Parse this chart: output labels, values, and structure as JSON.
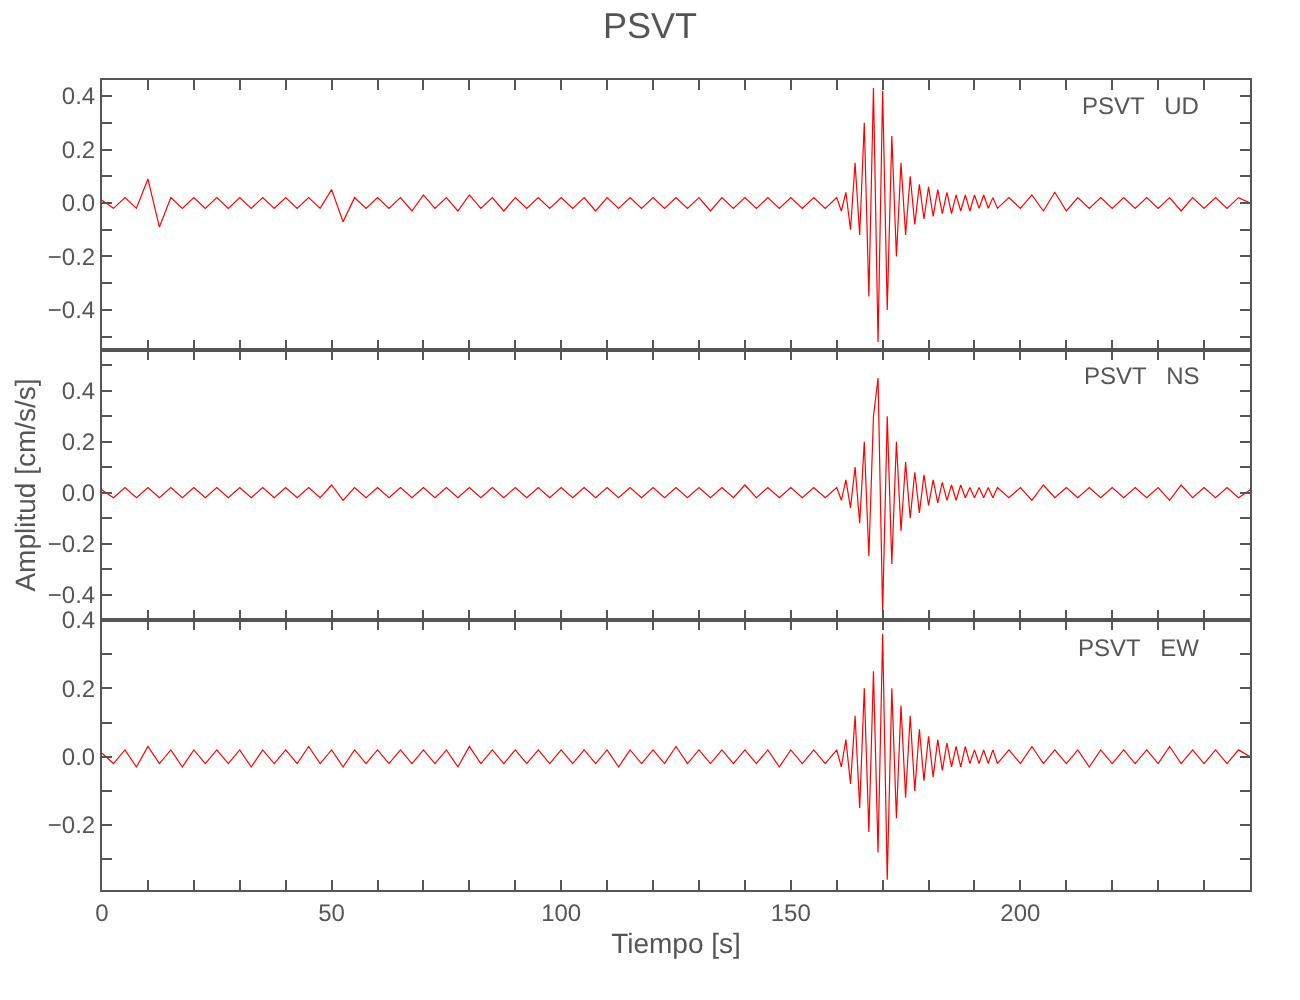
{
  "chart_data": [
    {
      "type": "line",
      "title": "PSVT",
      "annotations": [
        "PSVT   UD"
      ],
      "tick_labels": "y",
      "line_style": "solid",
      "marker": "none",
      "x": [
        0,
        2.5,
        5,
        7.5,
        10,
        12.5,
        15,
        17.5,
        20,
        22.5,
        25,
        27.5,
        30,
        32.5,
        35,
        37.5,
        40,
        42.5,
        45,
        47.5,
        50,
        52.5,
        55,
        57.5,
        60,
        62.5,
        65,
        67.5,
        70,
        72.5,
        75,
        77.5,
        80,
        82.5,
        85,
        87.5,
        90,
        92.5,
        95,
        97.5,
        100,
        102.5,
        105,
        107.5,
        110,
        112.5,
        115,
        117.5,
        120,
        122.5,
        125,
        127.5,
        130,
        132.5,
        135,
        137.5,
        140,
        142.5,
        145,
        147.5,
        150,
        152.5,
        155,
        157.5,
        160,
        161,
        162,
        163,
        164,
        165,
        166,
        167,
        168,
        169,
        170,
        171,
        172,
        173,
        174,
        175,
        176,
        177,
        178,
        179,
        180,
        181,
        182,
        183,
        184,
        185,
        186,
        187,
        188,
        189,
        190,
        191,
        192,
        193,
        194,
        195,
        197.5,
        200,
        202.5,
        205,
        207.5,
        210,
        212.5,
        215,
        217.5,
        220,
        222.5,
        225,
        227.5,
        230,
        232.5,
        235,
        237.5,
        240,
        242.5,
        245,
        247.5,
        250
      ],
      "series": [
        {
          "color": "#ff0000",
          "values": [
            0.01,
            -0.02,
            0.02,
            -0.02,
            0.09,
            -0.09,
            0.02,
            -0.02,
            0.02,
            -0.02,
            0.02,
            -0.02,
            0.02,
            -0.02,
            0.02,
            -0.02,
            0.02,
            -0.02,
            0.02,
            -0.02,
            0.05,
            -0.07,
            0.02,
            -0.02,
            0.02,
            -0.02,
            0.02,
            -0.03,
            0.03,
            -0.02,
            0.02,
            -0.03,
            0.03,
            -0.02,
            0.02,
            -0.03,
            0.02,
            -0.02,
            0.02,
            -0.02,
            0.02,
            -0.02,
            0.02,
            -0.03,
            0.02,
            -0.02,
            0.02,
            -0.02,
            0.02,
            -0.02,
            0.02,
            -0.02,
            0.02,
            -0.03,
            0.02,
            -0.02,
            0.02,
            -0.02,
            0.02,
            -0.02,
            0.02,
            -0.02,
            0.02,
            -0.02,
            0.02,
            -0.03,
            0.04,
            -0.1,
            0.15,
            -0.12,
            0.3,
            -0.35,
            0.43,
            -0.52,
            0.42,
            -0.4,
            0.25,
            -0.2,
            0.15,
            -0.12,
            0.1,
            -0.08,
            0.07,
            -0.06,
            0.06,
            -0.05,
            0.05,
            -0.04,
            0.04,
            -0.04,
            0.03,
            -0.03,
            0.03,
            -0.03,
            0.03,
            -0.02,
            0.03,
            -0.02,
            0.02,
            -0.02,
            0.02,
            -0.02,
            0.03,
            -0.03,
            0.04,
            -0.03,
            0.02,
            -0.02,
            0.02,
            -0.02,
            0.02,
            -0.02,
            0.02,
            -0.02,
            0.02,
            -0.03,
            0.02,
            -0.02,
            0.02,
            -0.02,
            0.02,
            0.0
          ]
        }
      ],
      "xlim": [
        0,
        250
      ],
      "ylim": [
        -0.55,
        0.46
      ],
      "xticks": [
        0,
        {
          "value": 10,
          "label": null
        },
        {
          "value": 20,
          "label": null
        },
        {
          "value": 30,
          "label": null
        },
        {
          "value": 40,
          "label": null
        },
        50,
        {
          "value": 60,
          "label": null
        },
        {
          "value": 70,
          "label": null
        },
        {
          "value": 80,
          "label": null
        },
        {
          "value": 90,
          "label": null
        },
        100,
        {
          "value": 110,
          "label": null
        },
        {
          "value": 120,
          "label": null
        },
        {
          "value": 130,
          "label": null
        },
        {
          "value": 140,
          "label": null
        },
        150,
        {
          "value": 160,
          "label": null
        },
        {
          "value": 170,
          "label": null
        },
        {
          "value": 180,
          "label": null
        },
        {
          "value": 190,
          "label": null
        },
        200,
        {
          "value": 210,
          "label": null
        },
        {
          "value": 220,
          "label": null
        },
        {
          "value": 230,
          "label": null
        },
        {
          "value": 240,
          "label": null
        }
      ],
      "yticks": [
        {
          "value": -0.5,
          "label": null
        },
        {
          "value": -0.4,
          "label": "−0.4"
        },
        {
          "value": -0.3,
          "label": null
        },
        {
          "value": -0.2,
          "label": "−0.2"
        },
        {
          "value": -0.1,
          "label": null
        },
        {
          "value": 0,
          "label": "0.0"
        },
        {
          "value": 0.1,
          "label": null
        },
        {
          "value": 0.2,
          "label": "0.2"
        },
        {
          "value": 0.3,
          "label": null
        },
        {
          "value": 0.4,
          "label": "0.4"
        }
      ]
    },
    {
      "type": "line",
      "ylabel": "Amplitud [cm/s/s]",
      "annotations": [
        "PSVT   NS"
      ],
      "tick_labels": "y",
      "line_style": "solid",
      "marker": "none",
      "x": [
        0,
        2.5,
        5,
        7.5,
        10,
        12.5,
        15,
        17.5,
        20,
        22.5,
        25,
        27.5,
        30,
        32.5,
        35,
        37.5,
        40,
        42.5,
        45,
        47.5,
        50,
        52.5,
        55,
        57.5,
        60,
        62.5,
        65,
        67.5,
        70,
        72.5,
        75,
        77.5,
        80,
        82.5,
        85,
        87.5,
        90,
        92.5,
        95,
        97.5,
        100,
        102.5,
        105,
        107.5,
        110,
        112.5,
        115,
        117.5,
        120,
        122.5,
        125,
        127.5,
        130,
        132.5,
        135,
        137.5,
        140,
        142.5,
        145,
        147.5,
        150,
        152.5,
        155,
        157.5,
        160,
        161,
        162,
        163,
        164,
        165,
        166,
        167,
        168,
        169,
        170,
        171,
        172,
        173,
        174,
        175,
        176,
        177,
        178,
        179,
        180,
        181,
        182,
        183,
        184,
        185,
        186,
        187,
        188,
        189,
        190,
        191,
        192,
        193,
        194,
        195,
        197.5,
        200,
        202.5,
        205,
        207.5,
        210,
        212.5,
        215,
        217.5,
        220,
        222.5,
        225,
        227.5,
        230,
        232.5,
        235,
        237.5,
        240,
        242.5,
        245,
        247.5,
        250
      ],
      "series": [
        {
          "color": "#ff0000",
          "values": [
            0.01,
            -0.02,
            0.02,
            -0.02,
            0.02,
            -0.02,
            0.02,
            -0.02,
            0.02,
            -0.02,
            0.02,
            -0.02,
            0.02,
            -0.02,
            0.02,
            -0.02,
            0.02,
            -0.02,
            0.02,
            -0.02,
            0.03,
            -0.03,
            0.02,
            -0.02,
            0.02,
            -0.02,
            0.02,
            -0.02,
            0.02,
            -0.02,
            0.02,
            -0.02,
            0.02,
            -0.02,
            0.02,
            -0.02,
            0.02,
            -0.02,
            0.02,
            -0.02,
            0.02,
            -0.02,
            0.02,
            -0.02,
            0.02,
            -0.02,
            0.02,
            -0.02,
            0.02,
            -0.02,
            0.02,
            -0.02,
            0.02,
            -0.02,
            0.02,
            -0.02,
            0.03,
            -0.02,
            0.02,
            -0.02,
            0.02,
            -0.02,
            0.02,
            -0.02,
            0.02,
            -0.03,
            0.05,
            -0.06,
            0.1,
            -0.12,
            0.2,
            -0.25,
            0.3,
            0.45,
            -0.47,
            0.3,
            -0.28,
            0.2,
            -0.15,
            0.12,
            -0.1,
            0.08,
            -0.08,
            0.07,
            -0.05,
            0.05,
            -0.04,
            0.04,
            -0.03,
            0.03,
            -0.03,
            0.03,
            -0.02,
            0.02,
            -0.02,
            0.02,
            -0.02,
            0.02,
            -0.02,
            0.02,
            -0.02,
            0.02,
            -0.03,
            0.03,
            -0.02,
            0.02,
            -0.02,
            0.02,
            -0.02,
            0.02,
            -0.02,
            0.02,
            -0.02,
            0.02,
            -0.03,
            0.03,
            -0.02,
            0.02,
            -0.02,
            0.02,
            -0.02,
            0.01
          ]
        }
      ],
      "xlim": [
        0,
        250
      ],
      "ylim": [
        -0.5,
        0.56
      ],
      "xticks": [
        0,
        {
          "value": 10,
          "label": null
        },
        {
          "value": 20,
          "label": null
        },
        {
          "value": 30,
          "label": null
        },
        {
          "value": 40,
          "label": null
        },
        50,
        {
          "value": 60,
          "label": null
        },
        {
          "value": 70,
          "label": null
        },
        {
          "value": 80,
          "label": null
        },
        {
          "value": 90,
          "label": null
        },
        100,
        {
          "value": 110,
          "label": null
        },
        {
          "value": 120,
          "label": null
        },
        {
          "value": 130,
          "label": null
        },
        {
          "value": 140,
          "label": null
        },
        150,
        {
          "value": 160,
          "label": null
        },
        {
          "value": 170,
          "label": null
        },
        {
          "value": 180,
          "label": null
        },
        {
          "value": 190,
          "label": null
        },
        200,
        {
          "value": 210,
          "label": null
        },
        {
          "value": 220,
          "label": null
        },
        {
          "value": 230,
          "label": null
        },
        {
          "value": 240,
          "label": null
        }
      ],
      "yticks": [
        {
          "value": -0.4,
          "label": "−0.4"
        },
        {
          "value": -0.3,
          "label": null
        },
        {
          "value": -0.2,
          "label": "−0.2"
        },
        {
          "value": -0.1,
          "label": null
        },
        {
          "value": 0,
          "label": "0.0"
        },
        {
          "value": 0.1,
          "label": null
        },
        {
          "value": 0.2,
          "label": "0.2"
        },
        {
          "value": 0.3,
          "label": null
        },
        {
          "value": 0.4,
          "label": "0.4"
        },
        {
          "value": 0.5,
          "label": null
        }
      ]
    },
    {
      "type": "line",
      "xlabel": "Tiempo [s]",
      "annotations": [
        "PSVT   EW"
      ],
      "line_style": "solid",
      "marker": "none",
      "x": [
        0,
        2.5,
        5,
        7.5,
        10,
        12.5,
        15,
        17.5,
        20,
        22.5,
        25,
        27.5,
        30,
        32.5,
        35,
        37.5,
        40,
        42.5,
        45,
        47.5,
        50,
        52.5,
        55,
        57.5,
        60,
        62.5,
        65,
        67.5,
        70,
        72.5,
        75,
        77.5,
        80,
        82.5,
        85,
        87.5,
        90,
        92.5,
        95,
        97.5,
        100,
        102.5,
        105,
        107.5,
        110,
        112.5,
        115,
        117.5,
        120,
        122.5,
        125,
        127.5,
        130,
        132.5,
        135,
        137.5,
        140,
        142.5,
        145,
        147.5,
        150,
        152.5,
        155,
        157.5,
        160,
        161,
        162,
        163,
        164,
        165,
        166,
        167,
        168,
        169,
        170,
        171,
        172,
        173,
        174,
        175,
        176,
        177,
        178,
        179,
        180,
        181,
        182,
        183,
        184,
        185,
        186,
        187,
        188,
        189,
        190,
        191,
        192,
        193,
        194,
        195,
        197.5,
        200,
        202.5,
        205,
        207.5,
        210,
        212.5,
        215,
        217.5,
        220,
        222.5,
        225,
        227.5,
        230,
        232.5,
        235,
        237.5,
        240,
        242.5,
        245,
        247.5,
        250
      ],
      "series": [
        {
          "color": "#ff0000",
          "values": [
            0.01,
            -0.02,
            0.02,
            -0.03,
            0.03,
            -0.02,
            0.02,
            -0.03,
            0.02,
            -0.02,
            0.02,
            -0.02,
            0.02,
            -0.03,
            0.02,
            -0.02,
            0.02,
            -0.02,
            0.03,
            -0.02,
            0.02,
            -0.03,
            0.02,
            -0.02,
            0.02,
            -0.02,
            0.02,
            -0.02,
            0.02,
            -0.02,
            0.02,
            -0.03,
            0.03,
            -0.02,
            0.02,
            -0.02,
            0.02,
            -0.02,
            0.02,
            -0.02,
            0.02,
            -0.02,
            0.02,
            -0.02,
            0.02,
            -0.03,
            0.02,
            -0.02,
            0.02,
            -0.02,
            0.03,
            -0.02,
            0.02,
            -0.02,
            0.02,
            -0.02,
            0.02,
            -0.02,
            0.02,
            -0.03,
            0.02,
            -0.02,
            0.02,
            -0.02,
            0.02,
            -0.03,
            0.05,
            -0.08,
            0.12,
            -0.15,
            0.2,
            -0.22,
            0.25,
            -0.28,
            0.36,
            -0.36,
            0.2,
            -0.18,
            0.15,
            -0.12,
            0.12,
            -0.1,
            0.08,
            -0.07,
            0.06,
            -0.06,
            0.05,
            -0.04,
            0.04,
            -0.03,
            0.03,
            -0.03,
            0.03,
            -0.02,
            0.02,
            -0.02,
            0.02,
            -0.02,
            0.02,
            -0.02,
            0.02,
            -0.02,
            0.03,
            -0.02,
            0.02,
            -0.02,
            0.02,
            -0.03,
            0.02,
            -0.02,
            0.02,
            -0.02,
            0.02,
            -0.02,
            0.03,
            -0.02,
            0.02,
            -0.02,
            0.02,
            -0.02,
            0.02,
            0.0
          ]
        }
      ],
      "xlim": [
        0,
        250
      ],
      "ylim": [
        -0.39,
        0.4
      ],
      "xticks": [
        0,
        {
          "value": 10,
          "label": null
        },
        {
          "value": 20,
          "label": null
        },
        {
          "value": 30,
          "label": null
        },
        {
          "value": 40,
          "label": null
        },
        50,
        {
          "value": 60,
          "label": null
        },
        {
          "value": 70,
          "label": null
        },
        {
          "value": 80,
          "label": null
        },
        {
          "value": 90,
          "label": null
        },
        100,
        {
          "value": 110,
          "label": null
        },
        {
          "value": 120,
          "label": null
        },
        {
          "value": 130,
          "label": null
        },
        {
          "value": 140,
          "label": null
        },
        150,
        {
          "value": 160,
          "label": null
        },
        {
          "value": 170,
          "label": null
        },
        {
          "value": 180,
          "label": null
        },
        {
          "value": 190,
          "label": null
        },
        200,
        {
          "value": 210,
          "label": null
        },
        {
          "value": 220,
          "label": null
        },
        {
          "value": 230,
          "label": null
        },
        {
          "value": 240,
          "label": null
        }
      ],
      "yticks": [
        {
          "value": -0.3,
          "label": null
        },
        {
          "value": -0.2,
          "label": "−0.2"
        },
        {
          "value": -0.1,
          "label": null
        },
        {
          "value": 0,
          "label": "0.0"
        },
        {
          "value": 0.1,
          "label": null
        },
        {
          "value": 0.2,
          "label": "0.2"
        },
        {
          "value": 0.3,
          "label": null
        },
        {
          "value": 0.4,
          "label": "0.4"
        }
      ]
    }
  ]
}
